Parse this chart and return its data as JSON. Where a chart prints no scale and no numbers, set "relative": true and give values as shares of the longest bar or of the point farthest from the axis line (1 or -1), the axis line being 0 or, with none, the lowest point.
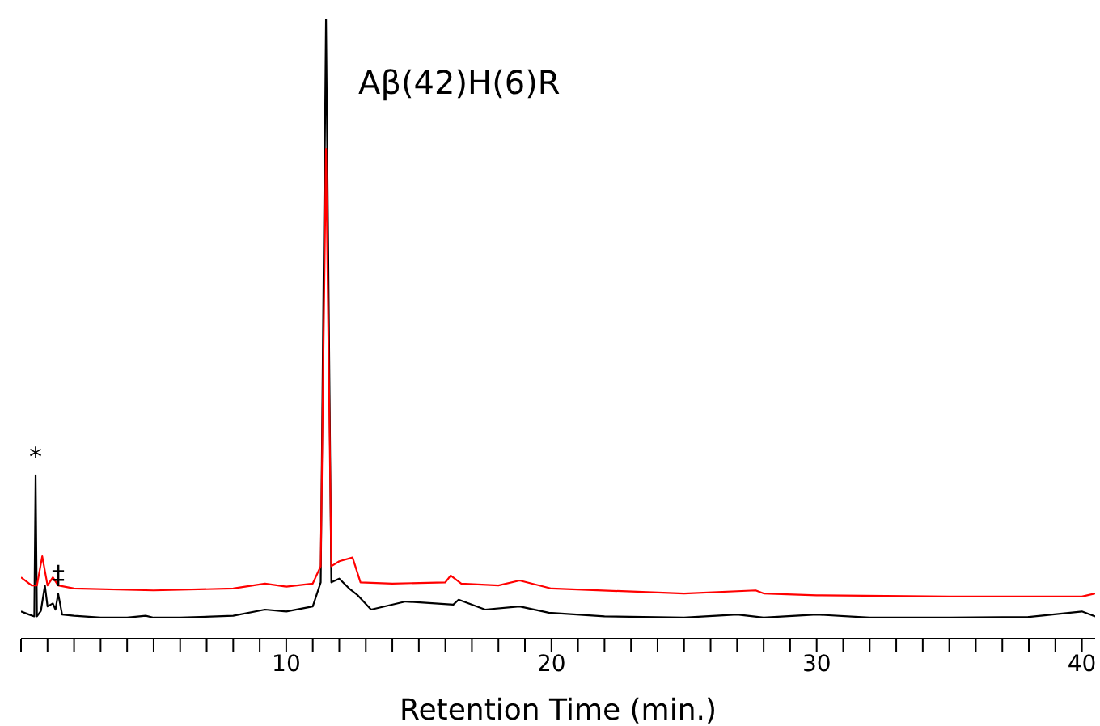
{
  "chart_data": {
    "type": "line",
    "relative": true,
    "xlabel": "Retention Time (min.)",
    "xlim": [
      0,
      40.5
    ],
    "xticks": [
      {
        "value": 0,
        "label": null
      },
      {
        "value": 1,
        "label": null
      },
      {
        "value": 2,
        "label": null
      },
      {
        "value": 3,
        "label": null
      },
      {
        "value": 4,
        "label": null
      },
      {
        "value": 5,
        "label": null
      },
      {
        "value": 6,
        "label": null
      },
      {
        "value": 7,
        "label": null
      },
      {
        "value": 8,
        "label": null
      },
      {
        "value": 9,
        "label": null
      },
      10,
      {
        "value": 11,
        "label": null
      },
      {
        "value": 12,
        "label": null
      },
      {
        "value": 13,
        "label": null
      },
      {
        "value": 14,
        "label": null
      },
      {
        "value": 15,
        "label": null
      },
      {
        "value": 16,
        "label": null
      },
      {
        "value": 17,
        "label": null
      },
      {
        "value": 18,
        "label": null
      },
      {
        "value": 19,
        "label": null
      },
      20,
      {
        "value": 21,
        "label": null
      },
      {
        "value": 22,
        "label": null
      },
      {
        "value": 23,
        "label": null
      },
      {
        "value": 24,
        "label": null
      },
      {
        "value": 25,
        "label": null
      },
      {
        "value": 26,
        "label": null
      },
      {
        "value": 27,
        "label": null
      },
      {
        "value": 28,
        "label": null
      },
      {
        "value": 29,
        "label": null
      },
      30,
      {
        "value": 31,
        "label": null
      },
      {
        "value": 32,
        "label": null
      },
      {
        "value": 33,
        "label": null
      },
      {
        "value": 34,
        "label": null
      },
      {
        "value": 35,
        "label": null
      },
      {
        "value": 36,
        "label": null
      },
      {
        "value": 37,
        "label": null
      },
      {
        "value": 38,
        "label": null
      },
      {
        "value": 39,
        "label": null
      },
      40
    ],
    "legend": false,
    "marker": "none",
    "line_style": "solid",
    "series": [
      {
        "color": "#000000",
        "x": [
          0,
          0.3,
          0.5,
          0.55,
          0.6,
          0.75,
          0.9,
          1.0,
          1.2,
          1.3,
          1.4,
          1.55,
          2,
          3,
          4,
          4.7,
          5,
          6,
          8,
          9.2,
          10,
          11,
          11.3,
          11.5,
          11.7,
          12.0,
          12.4,
          12.7,
          13.2,
          14.5,
          16.3,
          16.5,
          17.5,
          18.8,
          19.9,
          22,
          25,
          27,
          28,
          30,
          32,
          35,
          38,
          40,
          40.5
        ],
        "values": [
          0.044,
          0.039,
          0.036,
          0.264,
          0.036,
          0.045,
          0.086,
          0.052,
          0.057,
          0.047,
          0.073,
          0.039,
          0.037,
          0.034,
          0.034,
          0.037,
          0.034,
          0.034,
          0.037,
          0.047,
          0.044,
          0.052,
          0.091,
          1.0,
          0.091,
          0.097,
          0.08,
          0.07,
          0.047,
          0.06,
          0.055,
          0.063,
          0.047,
          0.052,
          0.042,
          0.036,
          0.034,
          0.039,
          0.034,
          0.039,
          0.034,
          0.034,
          0.035,
          0.044,
          0.036
        ]
      },
      {
        "color": "#ff0000",
        "x": [
          0,
          0.4,
          0.6,
          0.8,
          1.0,
          1.2,
          1.4,
          2,
          5,
          8,
          9.2,
          10,
          11,
          11.3,
          11.5,
          11.7,
          12,
          12.5,
          12.8,
          14,
          16,
          16.2,
          16.6,
          18,
          18.8,
          20,
          25,
          27.7,
          28,
          30,
          35,
          40,
          40.5
        ],
        "values": [
          0.099,
          0.086,
          0.086,
          0.133,
          0.086,
          0.099,
          0.086,
          0.081,
          0.078,
          0.081,
          0.089,
          0.084,
          0.089,
          0.117,
          0.791,
          0.117,
          0.125,
          0.131,
          0.091,
          0.089,
          0.091,
          0.102,
          0.089,
          0.086,
          0.094,
          0.081,
          0.073,
          0.078,
          0.073,
          0.07,
          0.068,
          0.068,
          0.073
        ]
      }
    ],
    "annotations": [
      {
        "text": "Aβ(42)H(6)R",
        "x": 11.5,
        "y": 1.0
      },
      {
        "text": "*",
        "x": 0.55,
        "y": 0.264
      },
      {
        "text": "‡",
        "x": 1.4,
        "y": 0.073
      }
    ]
  }
}
